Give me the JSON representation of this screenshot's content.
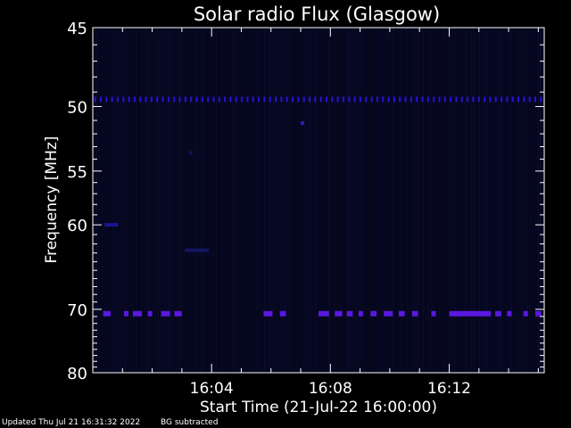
{
  "chart_data": {
    "type": "heatmap",
    "title": "Solar radio Flux (Glasgow)",
    "xlabel": "Start Time (21-Jul-22 16:00:00)",
    "ylabel": "Frequency [MHz]",
    "x_unit": "minutes after 16:00:00",
    "xlim": [
      0,
      15.2
    ],
    "ylim": [
      80,
      45
    ],
    "y_scale": "reciprocal",
    "x_ticks": [
      {
        "value": 4,
        "label": "16:04"
      },
      {
        "value": 8,
        "label": "16:08"
      },
      {
        "value": 12,
        "label": "16:12"
      }
    ],
    "x_minor_ticks": [
      1,
      2,
      3,
      5,
      6,
      7,
      9,
      10,
      11,
      13,
      14,
      15
    ],
    "y_ticks": [
      {
        "value": 45,
        "label": "45"
      },
      {
        "value": 50,
        "label": "50"
      },
      {
        "value": 55,
        "label": "55"
      },
      {
        "value": 60,
        "label": "60"
      },
      {
        "value": 70,
        "label": "70"
      },
      {
        "value": 80,
        "label": "80"
      }
    ],
    "y_minor_ticks": [
      46,
      47,
      48,
      49,
      51,
      52,
      53,
      54,
      56,
      57,
      58,
      59,
      61,
      62,
      63,
      64,
      65,
      66,
      67,
      68,
      69,
      71,
      72,
      73,
      74,
      75,
      76,
      77,
      78,
      79
    ],
    "features": [
      {
        "name": "band-49.5",
        "freq": 49.5,
        "x_start": 0.05,
        "x_end": 15.15,
        "pattern": "dotted",
        "color": "#2a10d8"
      },
      {
        "name": "band-70.6",
        "freq": 70.6,
        "x_start": 0.3,
        "x_end": 15.15,
        "pattern": "dashed",
        "color": "#5a18e0",
        "segments": [
          [
            0.35,
            0.6
          ],
          [
            1.05,
            1.2
          ],
          [
            1.35,
            1.65
          ],
          [
            1.85,
            2.0
          ],
          [
            2.3,
            2.6
          ],
          [
            2.75,
            3.0
          ],
          [
            5.75,
            6.05
          ],
          [
            6.3,
            6.5
          ],
          [
            7.6,
            7.95
          ],
          [
            8.15,
            8.4
          ],
          [
            8.55,
            8.75
          ],
          [
            8.95,
            9.1
          ],
          [
            9.35,
            9.55
          ],
          [
            9.8,
            10.1
          ],
          [
            10.3,
            10.5
          ],
          [
            10.75,
            10.95
          ],
          [
            11.4,
            11.55
          ],
          [
            12.0,
            13.4
          ],
          [
            13.55,
            13.75
          ],
          [
            13.95,
            14.1
          ],
          [
            14.5,
            14.65
          ],
          [
            14.9,
            15.1
          ]
        ]
      },
      {
        "name": "blob-60",
        "freq": 60.0,
        "x_start": 0.4,
        "x_end": 0.85,
        "color": "#1a1690"
      },
      {
        "name": "blob-51",
        "freq": 51.2,
        "x_start": 7.0,
        "x_end": 7.12,
        "color": "#2a1ac0"
      },
      {
        "name": "blob-53.5",
        "freq": 53.5,
        "x_start": 3.25,
        "x_end": 3.35,
        "color": "#161466"
      },
      {
        "name": "blob-62.5",
        "freq": 62.7,
        "x_start": 3.1,
        "x_end": 3.9,
        "color": "#141560"
      }
    ],
    "colors": {
      "background": "#000000",
      "plot_background": "#05061a",
      "noise": "#0d0f3a",
      "axis": "#ffffff"
    }
  },
  "footer": {
    "updated": "Updated Thu Jul 21 16:31:32 2022",
    "note": "BG subtracted"
  }
}
